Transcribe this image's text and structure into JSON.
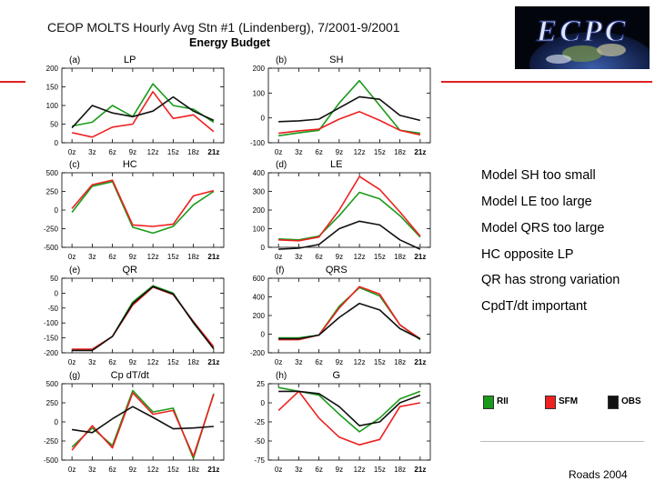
{
  "header": {
    "title": "CEOP MOLTS Hourly Avg Stn #1 (Lindenberg), 7/2001-9/2001",
    "subtitle": "Energy Budget"
  },
  "logo": {
    "text": "ECPC"
  },
  "bullets": [
    "Model SH too small",
    "Model LE too large",
    "Model QRS too large",
    "HC opposite LP",
    "QR has strong variation",
    "CpdT/dt important"
  ],
  "legend": [
    {
      "label": "RII",
      "color": "#1a9a1a"
    },
    {
      "label": "SFM",
      "color": "#ee2020"
    },
    {
      "label": "OBS",
      "color": "#111111"
    }
  ],
  "credit": "Roads 2004",
  "colors": {
    "RII": "#1a9a1a",
    "SFM": "#ee2020",
    "OBS": "#111111",
    "accent": "#e02020"
  },
  "chart_data": [
    {
      "type": "line",
      "panel": "(a)",
      "title": "LP",
      "categories": [
        "0z",
        "3z",
        "6z",
        "9z",
        "12z",
        "15z",
        "18z",
        "21z"
      ],
      "ylim": [
        0,
        200
      ],
      "yticks": [
        0,
        50,
        100,
        150,
        200
      ],
      "series": [
        {
          "name": "RII",
          "values": [
            45,
            55,
            100,
            70,
            158,
            100,
            90,
            55
          ]
        },
        {
          "name": "SFM",
          "values": [
            27,
            15,
            42,
            50,
            137,
            65,
            75,
            30
          ]
        },
        {
          "name": "OBS",
          "values": [
            40,
            100,
            80,
            70,
            85,
            123,
            85,
            60
          ]
        }
      ]
    },
    {
      "type": "line",
      "panel": "(b)",
      "title": "SH",
      "categories": [
        "0z",
        "3z",
        "6z",
        "9z",
        "12z",
        "15z",
        "18z",
        "21z"
      ],
      "ylim": [
        -100,
        200
      ],
      "yticks": [
        -100,
        0,
        100,
        200
      ],
      "series": [
        {
          "name": "RII",
          "values": [
            -72,
            -60,
            -50,
            60,
            150,
            50,
            -50,
            -62
          ]
        },
        {
          "name": "SFM",
          "values": [
            -62,
            -52,
            -45,
            -5,
            25,
            -10,
            -50,
            -68
          ]
        },
        {
          "name": "OBS",
          "values": [
            -15,
            -12,
            -5,
            40,
            85,
            75,
            10,
            -10
          ]
        }
      ]
    },
    {
      "type": "line",
      "panel": "(c)",
      "title": "HC",
      "categories": [
        "0z",
        "3z",
        "6z",
        "9z",
        "12z",
        "15z",
        "18z",
        "21z"
      ],
      "ylim": [
        -500,
        500
      ],
      "yticks": [
        -500,
        -250,
        0,
        250,
        500
      ],
      "series": [
        {
          "name": "RII",
          "values": [
            -30,
            320,
            380,
            -230,
            -310,
            -220,
            70,
            250
          ]
        },
        {
          "name": "SFM",
          "values": [
            20,
            340,
            400,
            -200,
            -220,
            -190,
            190,
            260
          ]
        }
      ]
    },
    {
      "type": "line",
      "panel": "(d)",
      "title": "LE",
      "categories": [
        "0z",
        "3z",
        "6z",
        "9z",
        "12z",
        "15z",
        "18z",
        "21z"
      ],
      "ylim": [
        0,
        400
      ],
      "yticks": [
        0,
        100,
        200,
        300,
        400
      ],
      "series": [
        {
          "name": "RII",
          "values": [
            45,
            40,
            60,
            170,
            295,
            260,
            170,
            55
          ]
        },
        {
          "name": "SFM",
          "values": [
            40,
            35,
            55,
            200,
            380,
            310,
            190,
            60
          ]
        },
        {
          "name": "OBS",
          "values": [
            -10,
            -5,
            15,
            100,
            140,
            120,
            40,
            -10
          ]
        }
      ]
    },
    {
      "type": "line",
      "panel": "(e)",
      "title": "QR",
      "categories": [
        "0z",
        "3z",
        "6z",
        "9z",
        "12z",
        "15z",
        "18z",
        "21z"
      ],
      "ylim": [
        -200,
        50
      ],
      "yticks": [
        -200,
        -150,
        -100,
        -50,
        0,
        50
      ],
      "series": [
        {
          "name": "RII",
          "values": [
            -190,
            -190,
            -145,
            -30,
            25,
            0,
            -100,
            -185
          ]
        },
        {
          "name": "SFM",
          "values": [
            -188,
            -188,
            -145,
            -40,
            20,
            -5,
            -95,
            -180
          ]
        },
        {
          "name": "OBS",
          "values": [
            -192,
            -192,
            -145,
            -35,
            22,
            -3,
            -98,
            -187
          ]
        }
      ]
    },
    {
      "type": "line",
      "panel": "(f)",
      "title": "QRS",
      "categories": [
        "0z",
        "3z",
        "6z",
        "9z",
        "12z",
        "15z",
        "18z",
        "21z"
      ],
      "ylim": [
        -200,
        600
      ],
      "yticks": [
        -200,
        0,
        200,
        400,
        600
      ],
      "series": [
        {
          "name": "RII",
          "values": [
            -40,
            -40,
            -10,
            300,
            500,
            410,
            100,
            -60
          ]
        },
        {
          "name": "SFM",
          "values": [
            -60,
            -60,
            -10,
            280,
            510,
            430,
            100,
            -50
          ]
        },
        {
          "name": "OBS",
          "values": [
            -50,
            -50,
            -10,
            180,
            330,
            260,
            60,
            -50
          ]
        }
      ]
    },
    {
      "type": "line",
      "panel": "(g)",
      "title": "Cp dT/dt",
      "categories": [
        "0z",
        "3z",
        "6z",
        "9z",
        "12z",
        "15z",
        "18z",
        "21z"
      ],
      "ylim": [
        -500,
        500
      ],
      "yticks": [
        -500,
        -250,
        0,
        250,
        500
      ],
      "series": [
        {
          "name": "RII",
          "values": [
            -330,
            -80,
            -310,
            410,
            130,
            180,
            -480,
            370
          ]
        },
        {
          "name": "SFM",
          "values": [
            -370,
            -50,
            -340,
            380,
            100,
            150,
            -450,
            360
          ]
        },
        {
          "name": "OBS",
          "values": [
            -100,
            -140,
            40,
            200,
            60,
            -90,
            -80,
            -60
          ]
        }
      ]
    },
    {
      "type": "line",
      "panel": "(h)",
      "title": "G",
      "categories": [
        "0z",
        "3z",
        "6z",
        "9z",
        "12z",
        "15z",
        "18z",
        "21z"
      ],
      "ylim": [
        -75,
        25
      ],
      "yticks": [
        -75,
        -50,
        -25,
        0,
        25
      ],
      "series": [
        {
          "name": "RII",
          "values": [
            20,
            15,
            10,
            -15,
            -38,
            -20,
            5,
            15
          ]
        },
        {
          "name": "SFM",
          "values": [
            -10,
            15,
            -20,
            -45,
            -55,
            -48,
            -5,
            0
          ]
        },
        {
          "name": "OBS",
          "values": [
            15,
            15,
            12,
            -5,
            -30,
            -25,
            0,
            10
          ]
        }
      ]
    }
  ]
}
